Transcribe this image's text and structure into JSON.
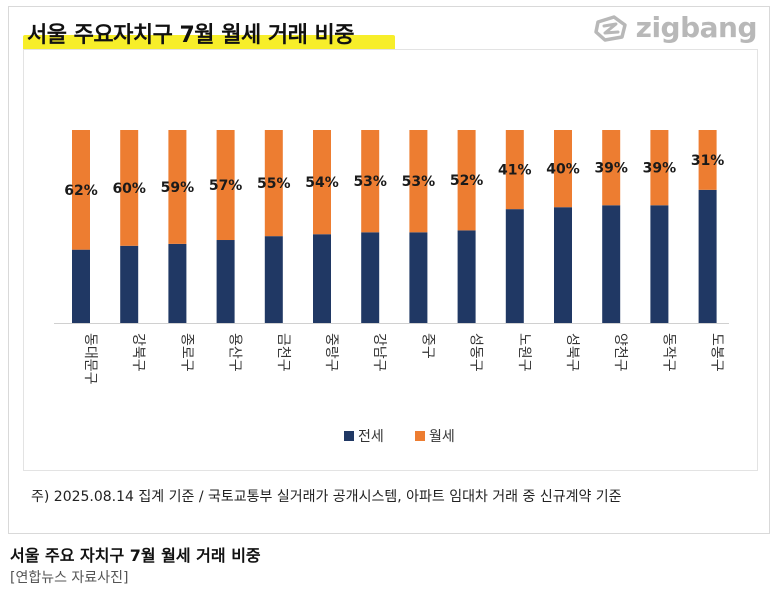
{
  "title": "서울 주요자치구 7월 월세 거래 비중",
  "logo_text": "zigbang",
  "note": "주) 2025.08.14 집계 기준 / 국토교통부 실거래가 공개시스템, 아파트 임대차 거래  중 신규계약 기준",
  "caption": "서울 주요 자치구 7월 월세 거래 비중",
  "source": "[연합뉴스 자료사진]",
  "colors": {
    "jeonse": "#203864",
    "wolse": "#ED7D31",
    "highlight": "#F7EE2A",
    "logo": "#B8B8B8"
  },
  "chart_data": {
    "type": "bar",
    "stacked": true,
    "categories": [
      "동대문구",
      "강북구",
      "종로구",
      "용산구",
      "금천구",
      "중랑구",
      "강남구",
      "중구",
      "성동구",
      "노원구",
      "성북구",
      "양천구",
      "동작구",
      "도봉구"
    ],
    "series": [
      {
        "name": "전세",
        "values": [
          38,
          40,
          41,
          43,
          45,
          46,
          47,
          47,
          48,
          59,
          60,
          61,
          61,
          69
        ]
      },
      {
        "name": "월세",
        "values": [
          62,
          60,
          59,
          57,
          55,
          54,
          53,
          53,
          52,
          41,
          40,
          39,
          39,
          31
        ]
      }
    ],
    "data_labels": [
      "62%",
      "60%",
      "59%",
      "57%",
      "55%",
      "54%",
      "53%",
      "53%",
      "52%",
      "41%",
      "40%",
      "39%",
      "39%",
      "31%"
    ],
    "ylim": [
      0,
      100
    ],
    "legend": "bottom",
    "grid": false
  }
}
